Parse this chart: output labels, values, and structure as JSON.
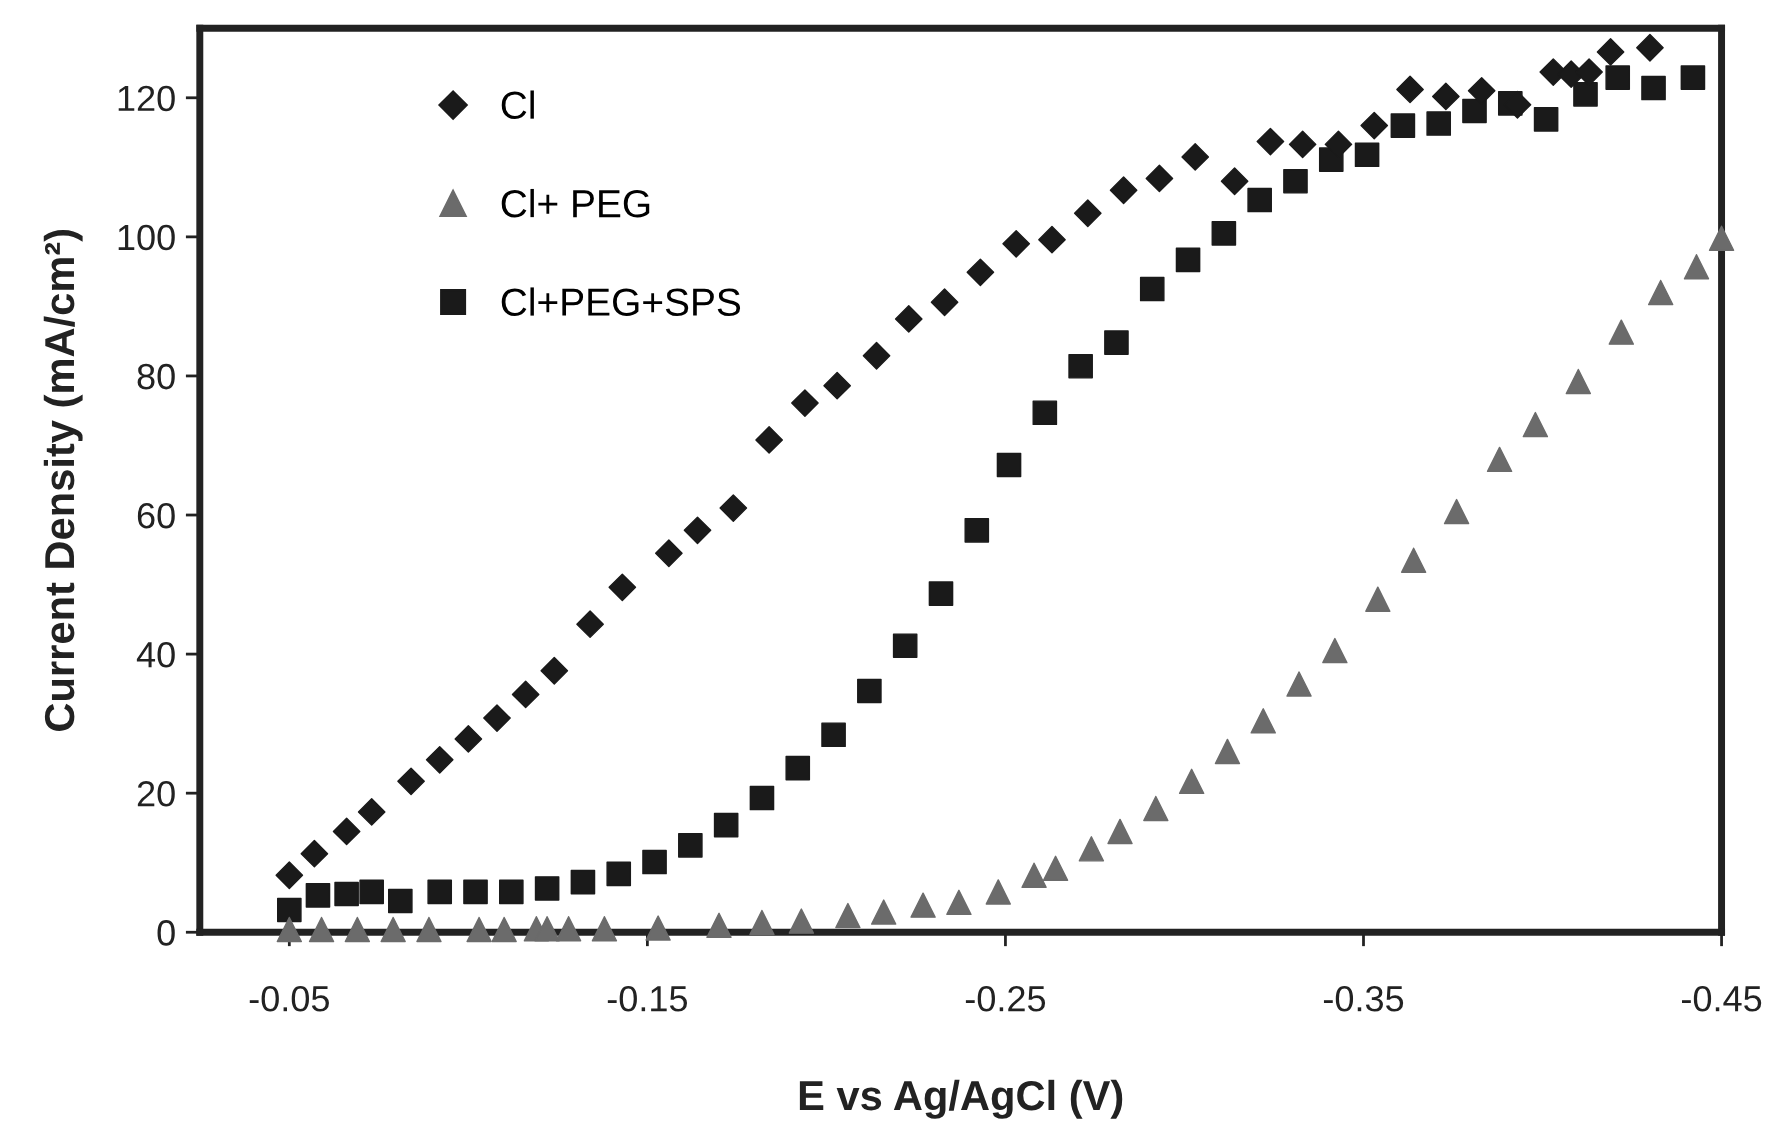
{
  "chart_data": {
    "type": "scatter",
    "xlabel": "E vs Ag/AgCl (V)",
    "ylabel": "Current Density (mA/cm²)",
    "xlim": [
      -0.025,
      -0.45
    ],
    "ylim": [
      0,
      130
    ],
    "xticks": [
      {
        "value": -0.05,
        "label": "-0.05"
      },
      {
        "value": -0.15,
        "label": "-0.15"
      },
      {
        "value": -0.25,
        "label": "-0.25"
      },
      {
        "value": -0.35,
        "label": "-0.35"
      },
      {
        "value": -0.45,
        "label": "-0.45"
      }
    ],
    "yticks": [
      0,
      20,
      40,
      60,
      80,
      100,
      120
    ],
    "grid": false,
    "legend": "top left",
    "series": [
      {
        "name": "Cl",
        "color": "#1a1a1a",
        "marker": "diamond",
        "x": [
          -0.05,
          -0.057,
          -0.066,
          -0.073,
          -0.084,
          -0.092,
          -0.1,
          -0.108,
          -0.116,
          -0.124,
          -0.134,
          -0.143,
          -0.156,
          -0.164,
          -0.174,
          -0.184,
          -0.194,
          -0.203,
          -0.214,
          -0.223,
          -0.233,
          -0.243,
          -0.253,
          -0.263,
          -0.273,
          -0.283,
          -0.293,
          -0.303,
          -0.314,
          -0.324,
          -0.333,
          -0.343,
          -0.353,
          -0.363,
          -0.373,
          -0.383,
          -0.393,
          -0.403,
          -0.408,
          -0.413,
          -0.419,
          -0.43
        ],
        "values": [
          8.2,
          11.3,
          14.5,
          17.3,
          21.7,
          24.8,
          27.8,
          30.8,
          34.2,
          37.6,
          44.3,
          49.6,
          54.5,
          57.8,
          61.0,
          70.8,
          76.1,
          78.6,
          82.9,
          88.2,
          90.6,
          94.9,
          99.0,
          99.6,
          103.4,
          106.7,
          108.4,
          111.5,
          108.0,
          113.7,
          113.3,
          113.3,
          116.0,
          121.2,
          120.2,
          121.0,
          119.0,
          123.7,
          123.4,
          123.7,
          126.6,
          127.2
        ]
      },
      {
        "name": "Cl+ PEG",
        "color": "#6b6b6b",
        "marker": "triangle",
        "x": [
          -0.05,
          -0.059,
          -0.069,
          -0.079,
          -0.089,
          -0.103,
          -0.11,
          -0.119,
          -0.122,
          -0.128,
          -0.138,
          -0.153,
          -0.17,
          -0.182,
          -0.193,
          -0.206,
          -0.216,
          -0.227,
          -0.237,
          -0.248,
          -0.258,
          -0.264,
          -0.274,
          -0.282,
          -0.292,
          -0.302,
          -0.312,
          -0.322,
          -0.332,
          -0.342,
          -0.354,
          -0.364,
          -0.376,
          -0.388,
          -0.398,
          -0.41,
          -0.422,
          -0.433,
          -0.443,
          -0.45
        ],
        "values": [
          0.4,
          0.4,
          0.4,
          0.4,
          0.4,
          0.4,
          0.4,
          0.5,
          0.5,
          0.5,
          0.5,
          0.6,
          1.0,
          1.4,
          1.6,
          2.4,
          2.9,
          3.9,
          4.3,
          5.8,
          8.2,
          9.2,
          12.0,
          14.5,
          17.8,
          21.7,
          26.0,
          30.4,
          35.7,
          40.5,
          47.9,
          53.5,
          60.5,
          68.0,
          73.0,
          79.2,
          86.3,
          92.0,
          95.7,
          99.8
        ]
      },
      {
        "name": "Cl+PEG+SPS",
        "color": "#1a1a1a",
        "marker": "square",
        "x": [
          -0.05,
          -0.058,
          -0.066,
          -0.073,
          -0.081,
          -0.092,
          -0.102,
          -0.112,
          -0.122,
          -0.132,
          -0.142,
          -0.152,
          -0.162,
          -0.172,
          -0.182,
          -0.192,
          -0.202,
          -0.212,
          -0.222,
          -0.232,
          -0.242,
          -0.251,
          -0.261,
          -0.271,
          -0.281,
          -0.291,
          -0.301,
          -0.311,
          -0.321,
          -0.331,
          -0.341,
          -0.351,
          -0.361,
          -0.371,
          -0.381,
          -0.391,
          -0.401,
          -0.412,
          -0.421,
          -0.431,
          -0.442
        ],
        "values": [
          3.2,
          5.3,
          5.5,
          5.8,
          4.5,
          5.8,
          5.8,
          5.8,
          6.3,
          7.2,
          8.4,
          10.1,
          12.5,
          15.4,
          19.3,
          23.6,
          28.4,
          34.7,
          41.2,
          48.7,
          57.8,
          67.2,
          74.7,
          81.4,
          84.8,
          92.5,
          96.7,
          100.5,
          105.3,
          108.0,
          111.1,
          111.8,
          116.0,
          116.3,
          118.1,
          119.2,
          116.9,
          120.5,
          122.9,
          121.4,
          122.9
        ]
      }
    ]
  }
}
